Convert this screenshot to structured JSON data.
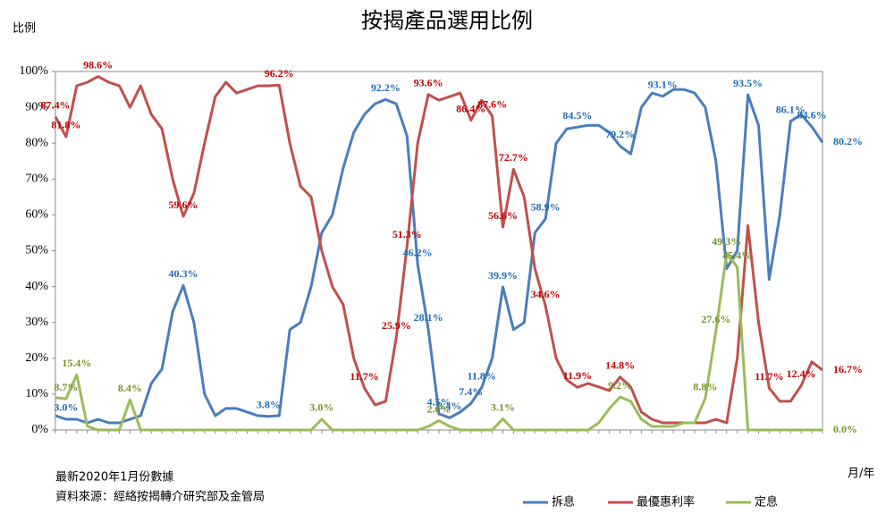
{
  "chart_data": {
    "type": "line",
    "title": "按揭產品選用比例",
    "y_label": "比例",
    "x_label": "月/年",
    "notes": [
      "最新2020年1月份數據",
      "資料來源：經絡按揭轉介研究部及金管局"
    ],
    "categories": [
      null,
      null,
      null,
      null,
      null,
      null,
      null,
      null,
      null,
      null,
      null,
      null,
      null,
      null,
      null,
      null,
      null,
      null,
      null,
      null,
      null,
      null,
      null,
      null,
      null,
      null,
      null,
      null,
      null,
      null,
      null,
      null,
      null,
      null,
      null,
      null,
      null,
      null,
      null,
      null,
      null,
      null,
      null,
      null,
      null,
      null,
      null,
      null,
      null,
      null,
      null,
      null,
      null,
      null,
      null,
      null,
      null,
      null,
      null,
      null,
      null,
      null,
      null,
      null,
      null,
      null,
      null,
      null,
      null,
      null,
      null,
      null,
      null
    ],
    "ylim": [
      0,
      100
    ],
    "yticks": [
      {
        "value": 0,
        "label": "0%"
      },
      {
        "value": 10,
        "label": "10%"
      },
      {
        "value": 20,
        "label": "20%"
      },
      {
        "value": 30,
        "label": "30%"
      },
      {
        "value": 40,
        "label": "40%"
      },
      {
        "value": 50,
        "label": "50%"
      },
      {
        "value": 60,
        "label": "60%"
      },
      {
        "value": 70,
        "label": "70%"
      },
      {
        "value": 80,
        "label": "80%"
      },
      {
        "value": 90,
        "label": "90%"
      },
      {
        "value": 100,
        "label": "100%"
      }
    ],
    "grid": false,
    "legend": "bottom",
    "series": [
      {
        "name": "拆息",
        "color": "#4a7ebb",
        "values": [
          4,
          3.0,
          3,
          2,
          3,
          2,
          2,
          3,
          4,
          13,
          17,
          33,
          40.3,
          30,
          10,
          4,
          6,
          6,
          5,
          4,
          3.8,
          4,
          28,
          30,
          40,
          55,
          60,
          73,
          83,
          88,
          91,
          92.2,
          91,
          82,
          46.2,
          28.1,
          4.5,
          3.4,
          5,
          7.4,
          11.8,
          20,
          39.9,
          28,
          30,
          55,
          58.9,
          80,
          84,
          84.5,
          85,
          85,
          83,
          79.2,
          77,
          90,
          94,
          93.1,
          95,
          95,
          94,
          90,
          75,
          45,
          50,
          93.5,
          85,
          42,
          60,
          86.1,
          88,
          84.6,
          80.2
        ],
        "value_labels": [
          null,
          "3.0%",
          null,
          null,
          null,
          null,
          null,
          null,
          null,
          null,
          null,
          null,
          "40.3%",
          null,
          null,
          null,
          null,
          null,
          null,
          null,
          "3.8%",
          null,
          null,
          null,
          null,
          null,
          null,
          null,
          null,
          null,
          null,
          "92.2%",
          null,
          null,
          "46.2%",
          "28.1%",
          "4.5%",
          "3.4%",
          null,
          "7.4%",
          "11.8%",
          null,
          "39.9%",
          null,
          null,
          null,
          "58.9%",
          null,
          null,
          "84.5%",
          null,
          null,
          null,
          "79.2%",
          null,
          null,
          null,
          "93.1%",
          null,
          null,
          null,
          null,
          null,
          null,
          null,
          "93.5%",
          null,
          null,
          null,
          "86.1%",
          null,
          "84.6%",
          "80.2%"
        ]
      },
      {
        "name": "最優惠利率",
        "color": "#c0504d",
        "values": [
          87.4,
          81.8,
          96,
          97,
          98.6,
          97,
          96,
          90,
          96,
          88,
          84,
          70,
          59.6,
          66,
          80,
          93,
          97,
          94,
          95,
          96,
          96,
          96.2,
          80,
          68,
          65,
          50,
          40,
          35,
          20,
          11.7,
          7,
          8,
          25.9,
          51.3,
          80,
          93.6,
          92,
          93,
          94,
          86.4,
          92,
          87.6,
          56.6,
          72.7,
          65,
          45,
          34.6,
          20,
          14,
          11.9,
          13,
          12,
          11,
          14.8,
          12,
          5,
          3,
          2,
          2,
          2,
          2,
          2,
          3,
          2,
          20,
          57,
          30,
          11.7,
          8,
          8,
          12.4,
          19,
          16.7
        ],
        "value_labels": [
          "87.4%",
          "81.8%",
          null,
          null,
          "98.6%",
          null,
          null,
          null,
          null,
          null,
          null,
          null,
          "59.6%",
          null,
          null,
          null,
          null,
          null,
          null,
          null,
          null,
          "96.2%",
          null,
          null,
          null,
          null,
          null,
          null,
          null,
          "11.7%",
          null,
          null,
          "25.9%",
          "51.3%",
          null,
          "93.6%",
          null,
          null,
          null,
          "86.4%",
          null,
          "87.6%",
          "56.6%",
          "72.7%",
          null,
          null,
          "34.6%",
          null,
          null,
          "11.9%",
          null,
          null,
          null,
          "14.8%",
          null,
          null,
          null,
          null,
          null,
          null,
          null,
          null,
          null,
          null,
          null,
          null,
          null,
          "11.7%",
          null,
          null,
          "12.4%",
          null,
          "16.7%"
        ]
      },
      {
        "name": "定息",
        "color": "#9bbb59",
        "values": [
          9,
          8.7,
          15.4,
          1,
          0,
          0,
          0,
          8.4,
          0,
          0,
          0,
          0,
          0,
          0,
          0,
          0,
          0,
          0,
          0,
          0,
          0,
          0,
          0,
          0,
          0,
          3.0,
          0,
          0,
          0,
          0,
          0,
          0,
          0,
          0,
          0,
          1,
          2.6,
          1,
          0,
          0,
          0,
          0,
          3.1,
          0,
          0,
          0,
          0,
          0,
          0,
          0,
          0,
          2,
          6,
          9.2,
          8,
          3,
          1,
          1,
          1,
          2,
          2,
          8.8,
          27.6,
          49.3,
          45.4,
          0,
          0,
          0,
          0,
          0,
          0,
          0,
          0.0
        ],
        "value_labels": [
          null,
          "8.7%",
          "15.4%",
          null,
          null,
          null,
          null,
          "8.4%",
          null,
          null,
          null,
          null,
          null,
          null,
          null,
          null,
          null,
          null,
          null,
          null,
          null,
          null,
          null,
          null,
          null,
          "3.0%",
          null,
          null,
          null,
          null,
          null,
          null,
          null,
          null,
          null,
          null,
          "2.6%",
          null,
          null,
          null,
          null,
          null,
          "3.1%",
          null,
          null,
          null,
          null,
          null,
          null,
          null,
          null,
          null,
          null,
          "9.2%",
          null,
          null,
          null,
          null,
          null,
          null,
          null,
          "8.8%",
          "27.6%",
          "49.3%",
          "45.4%",
          null,
          null,
          null,
          null,
          null,
          null,
          null,
          "0.0%"
        ]
      }
    ]
  }
}
